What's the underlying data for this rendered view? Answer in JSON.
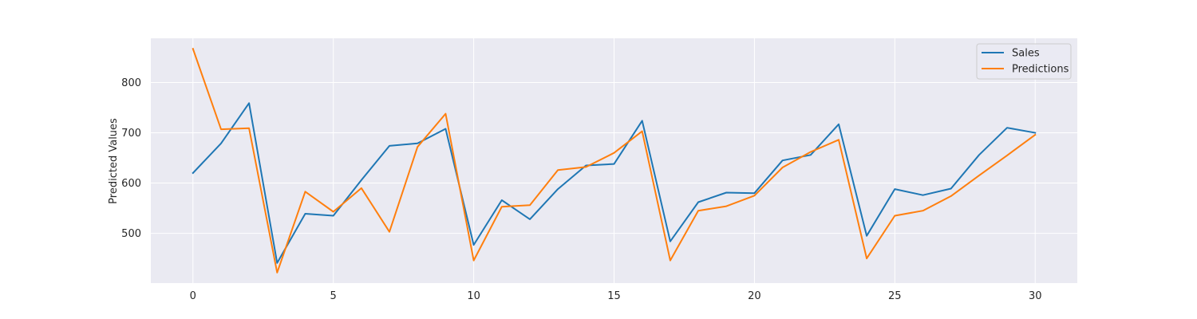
{
  "chart_data": {
    "type": "line",
    "title": "",
    "xlabel": "",
    "ylabel": "Predicted Values",
    "xlim": [
      -1.5,
      31.5
    ],
    "ylim": [
      401,
      888
    ],
    "xticks": [
      0,
      5,
      10,
      15,
      20,
      25,
      30
    ],
    "yticks": [
      500,
      600,
      700,
      800
    ],
    "grid": true,
    "legend_position": "top-right",
    "x": [
      0,
      1,
      2,
      3,
      4,
      5,
      6,
      7,
      8,
      9,
      10,
      11,
      12,
      13,
      14,
      15,
      16,
      17,
      18,
      19,
      20,
      21,
      22,
      23,
      24,
      25,
      26,
      27,
      28,
      29,
      30
    ],
    "series": [
      {
        "name": "Sales",
        "color": "#1f77b4",
        "values": [
          620,
          679,
          759,
          441,
          539,
          535,
          606,
          674,
          679,
          708,
          477,
          566,
          528,
          588,
          635,
          638,
          724,
          484,
          562,
          581,
          580,
          645,
          656,
          717,
          495,
          588,
          576,
          589,
          656,
          710,
          700
        ]
      },
      {
        "name": "Predictions",
        "color": "#ff7f0e",
        "values": [
          867,
          707,
          709,
          422,
          583,
          543,
          590,
          503,
          672,
          738,
          446,
          553,
          556,
          626,
          632,
          660,
          703,
          446,
          545,
          554,
          575,
          631,
          662,
          686,
          450,
          535,
          545,
          574,
          615,
          655,
          696
        ]
      }
    ]
  }
}
